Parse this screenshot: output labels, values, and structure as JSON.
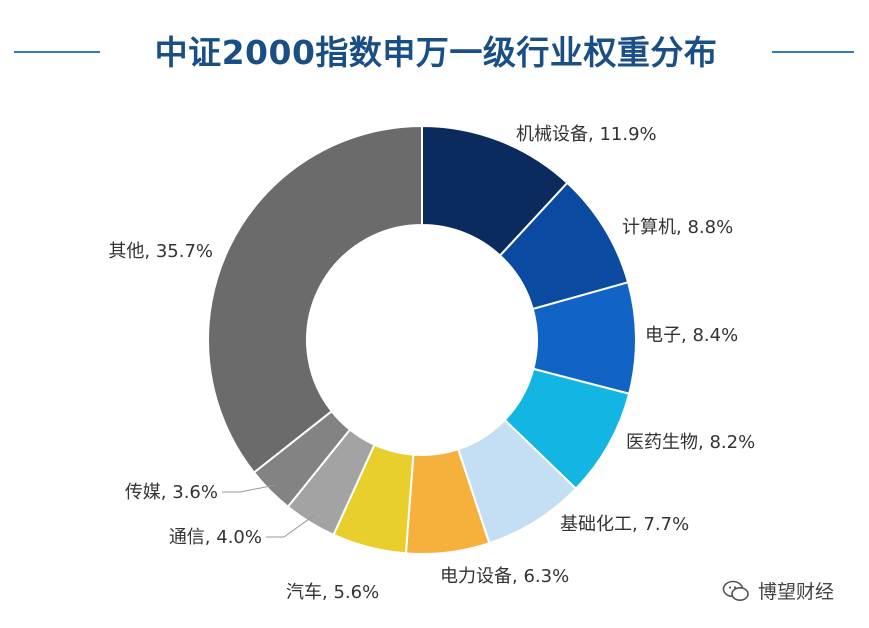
{
  "chart_data": {
    "type": "pie",
    "title": "中证2000指数申万一级行业权重分布",
    "categories": [
      "机械设备",
      "计算机",
      "电子",
      "医药生物",
      "基础化工",
      "电力设备",
      "汽车",
      "通信",
      "传媒",
      "其他"
    ],
    "values": [
      11.9,
      8.8,
      8.4,
      8.2,
      7.7,
      6.3,
      5.6,
      4.0,
      3.6,
      35.7
    ],
    "value_labels": [
      "机械设备, 11.9%",
      "计算机, 8.8%",
      "电子, 8.4%",
      "医药生物, 8.2%",
      "基础化工, 7.7%",
      "电力设备, 6.3%",
      "汽车, 5.6%",
      "通信, 4.0%",
      "传媒, 3.6%",
      "其他, 35.7%"
    ],
    "colors": [
      "#0b2a5e",
      "#0a4aa0",
      "#1164c6",
      "#13b6e2",
      "#c4def4",
      "#f5b13c",
      "#e8cf2c",
      "#a3a3a3",
      "#838383",
      "#6b6b6b"
    ],
    "donut": true,
    "legend": "none"
  },
  "watermark": {
    "text": "博望财经",
    "icon": "wechat-icon"
  }
}
